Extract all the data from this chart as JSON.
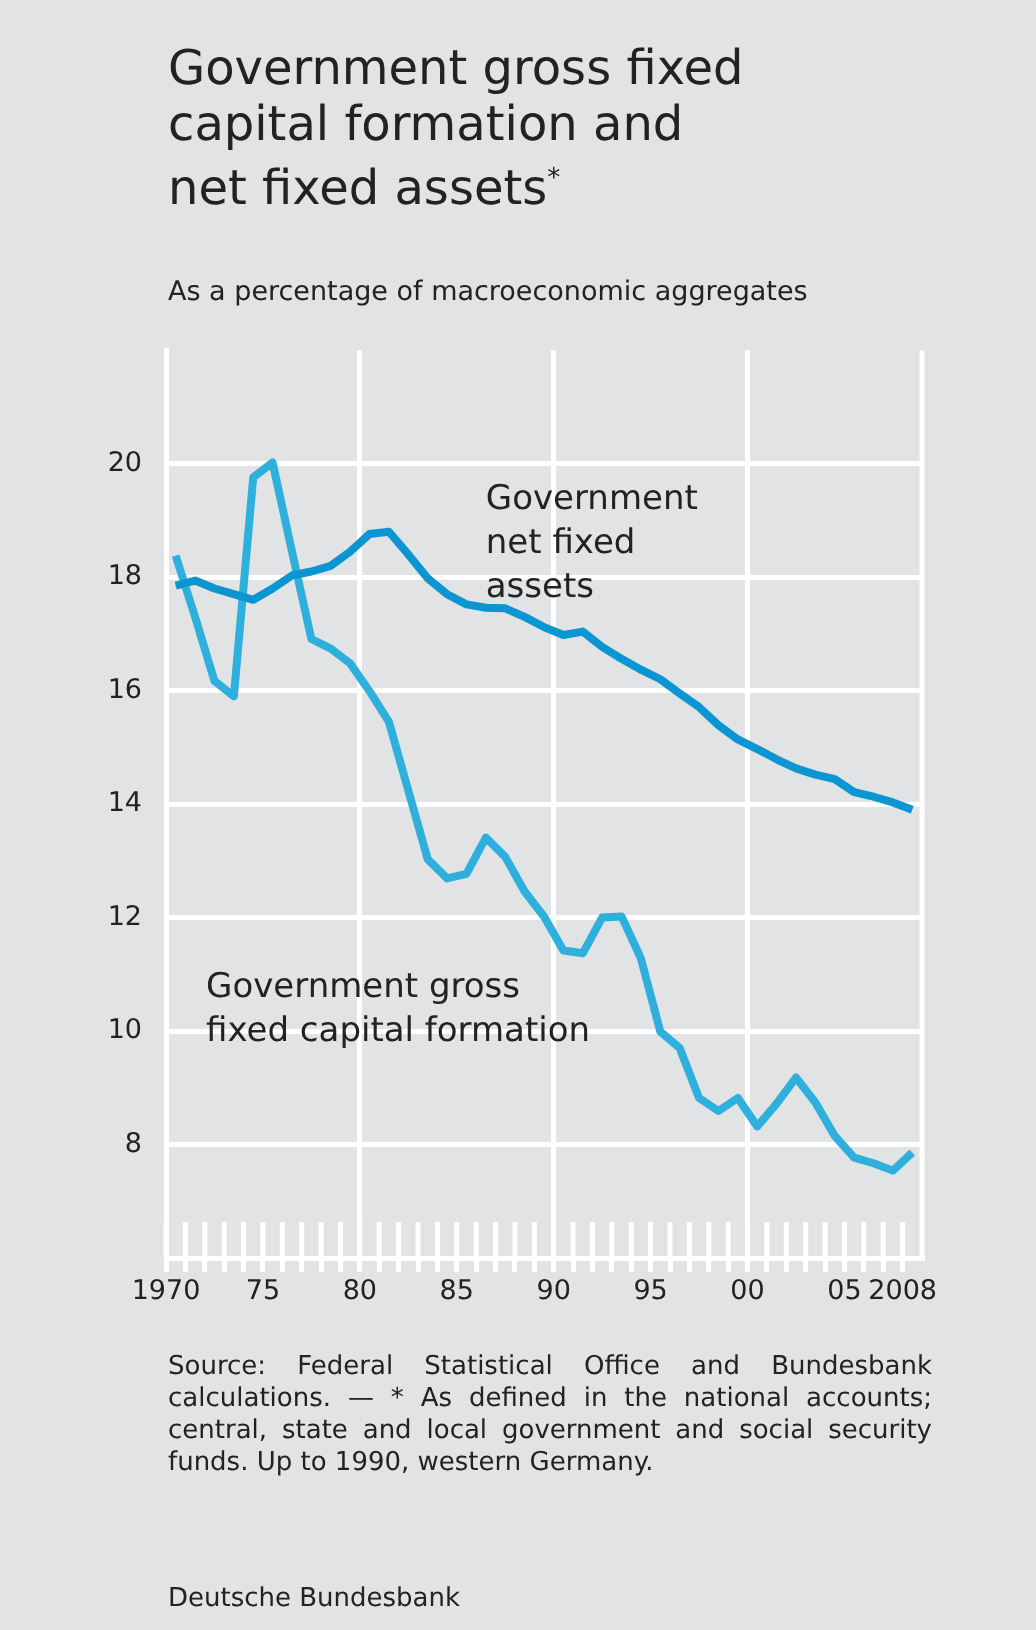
{
  "chart_data": {
    "type": "line",
    "title": "Government gross fixed capital formation and net fixed assets$^{*}$",
    "subtitle": "As a percentage of macroeconomic aggregates",
    "x": [
      1970.5,
      1971.5,
      1972.5,
      1973.5,
      1974.5,
      1975.5,
      1976.5,
      1977.5,
      1978.5,
      1979.5,
      1980.5,
      1981.5,
      1982.5,
      1983.5,
      1984.5,
      1985.5,
      1986.5,
      1987.5,
      1988.5,
      1989.5,
      1990.5,
      1991.5,
      1992.5,
      1993.5,
      1994.5,
      1995.5,
      1996.5,
      1997.5,
      1998.5,
      1999.5,
      2000.5,
      2001.5,
      2002.5,
      2003.5,
      2004.5,
      2005.5,
      2006.5,
      2007.5,
      2008.5
    ],
    "series": [
      {
        "name": "Government net fixed assets",
        "color": "#0b96d2",
        "values": [
          17.85,
          17.94,
          17.8,
          17.7,
          17.6,
          17.8,
          18.03,
          18.1,
          18.2,
          18.45,
          18.76,
          18.8,
          18.4,
          17.98,
          17.7,
          17.52,
          17.46,
          17.45,
          17.3,
          17.12,
          16.98,
          17.04,
          16.77,
          16.56,
          16.37,
          16.2,
          15.95,
          15.71,
          15.39,
          15.14,
          14.97,
          14.79,
          14.63,
          14.52,
          14.44,
          14.21,
          14.13,
          14.03,
          13.9
        ]
      },
      {
        "name": "Government gross fixed capital formation",
        "color": "#2fb0dc",
        "values": [
          18.38,
          17.3,
          16.17,
          15.9,
          19.76,
          20.02,
          18.45,
          16.91,
          16.74,
          16.48,
          15.99,
          15.45,
          14.24,
          13.03,
          12.69,
          12.77,
          13.41,
          13.07,
          12.46,
          12.02,
          11.42,
          11.37,
          12.0,
          12.02,
          11.28,
          9.99,
          9.7,
          8.82,
          8.59,
          8.82,
          8.32,
          8.72,
          9.18,
          8.74,
          8.15,
          7.77,
          7.67,
          7.54,
          7.86
        ]
      }
    ],
    "xlim": [
      1970,
      2009
    ],
    "xticks": [
      {
        "value": 1970,
        "label": "1970"
      },
      {
        "value": 1971,
        "label": null
      },
      {
        "value": 1972,
        "label": null
      },
      {
        "value": 1973,
        "label": null
      },
      {
        "value": 1974,
        "label": null
      },
      {
        "value": 1975,
        "label": "75"
      },
      {
        "value": 1976,
        "label": null
      },
      {
        "value": 1977,
        "label": null
      },
      {
        "value": 1978,
        "label": null
      },
      {
        "value": 1979,
        "label": null
      },
      {
        "value": 1980,
        "label": "80"
      },
      {
        "value": 1981,
        "label": null
      },
      {
        "value": 1982,
        "label": null
      },
      {
        "value": 1983,
        "label": null
      },
      {
        "value": 1984,
        "label": null
      },
      {
        "value": 1985,
        "label": "85"
      },
      {
        "value": 1986,
        "label": null
      },
      {
        "value": 1987,
        "label": null
      },
      {
        "value": 1988,
        "label": null
      },
      {
        "value": 1989,
        "label": null
      },
      {
        "value": 1990,
        "label": "90"
      },
      {
        "value": 1991,
        "label": null
      },
      {
        "value": 1992,
        "label": null
      },
      {
        "value": 1993,
        "label": null
      },
      {
        "value": 1994,
        "label": null
      },
      {
        "value": 1995,
        "label": "95"
      },
      {
        "value": 1996,
        "label": null
      },
      {
        "value": 1997,
        "label": null
      },
      {
        "value": 1998,
        "label": null
      },
      {
        "value": 1999,
        "label": null
      },
      {
        "value": 2000,
        "label": "00"
      },
      {
        "value": 2001,
        "label": null
      },
      {
        "value": 2002,
        "label": null
      },
      {
        "value": 2003,
        "label": null
      },
      {
        "value": 2004,
        "label": null
      },
      {
        "value": 2005,
        "label": "05"
      },
      {
        "value": 2006,
        "label": null
      },
      {
        "value": 2007,
        "label": null
      },
      {
        "value": 2008,
        "label": "2008"
      }
    ],
    "ylim": [
      6,
      22
    ],
    "yticks": [
      8,
      10,
      12,
      14,
      16,
      18,
      20
    ],
    "grid": true,
    "legend": false,
    "marker": "none",
    "line_style": "solid",
    "annotations": [
      "Source: Federal Statistical Office and Bundesbank calculations. — * As defined in the national accounts; central, state and local government and social security funds. Up to 1990, western Germany.",
      "Deutsche Bundesbank"
    ]
  }
}
